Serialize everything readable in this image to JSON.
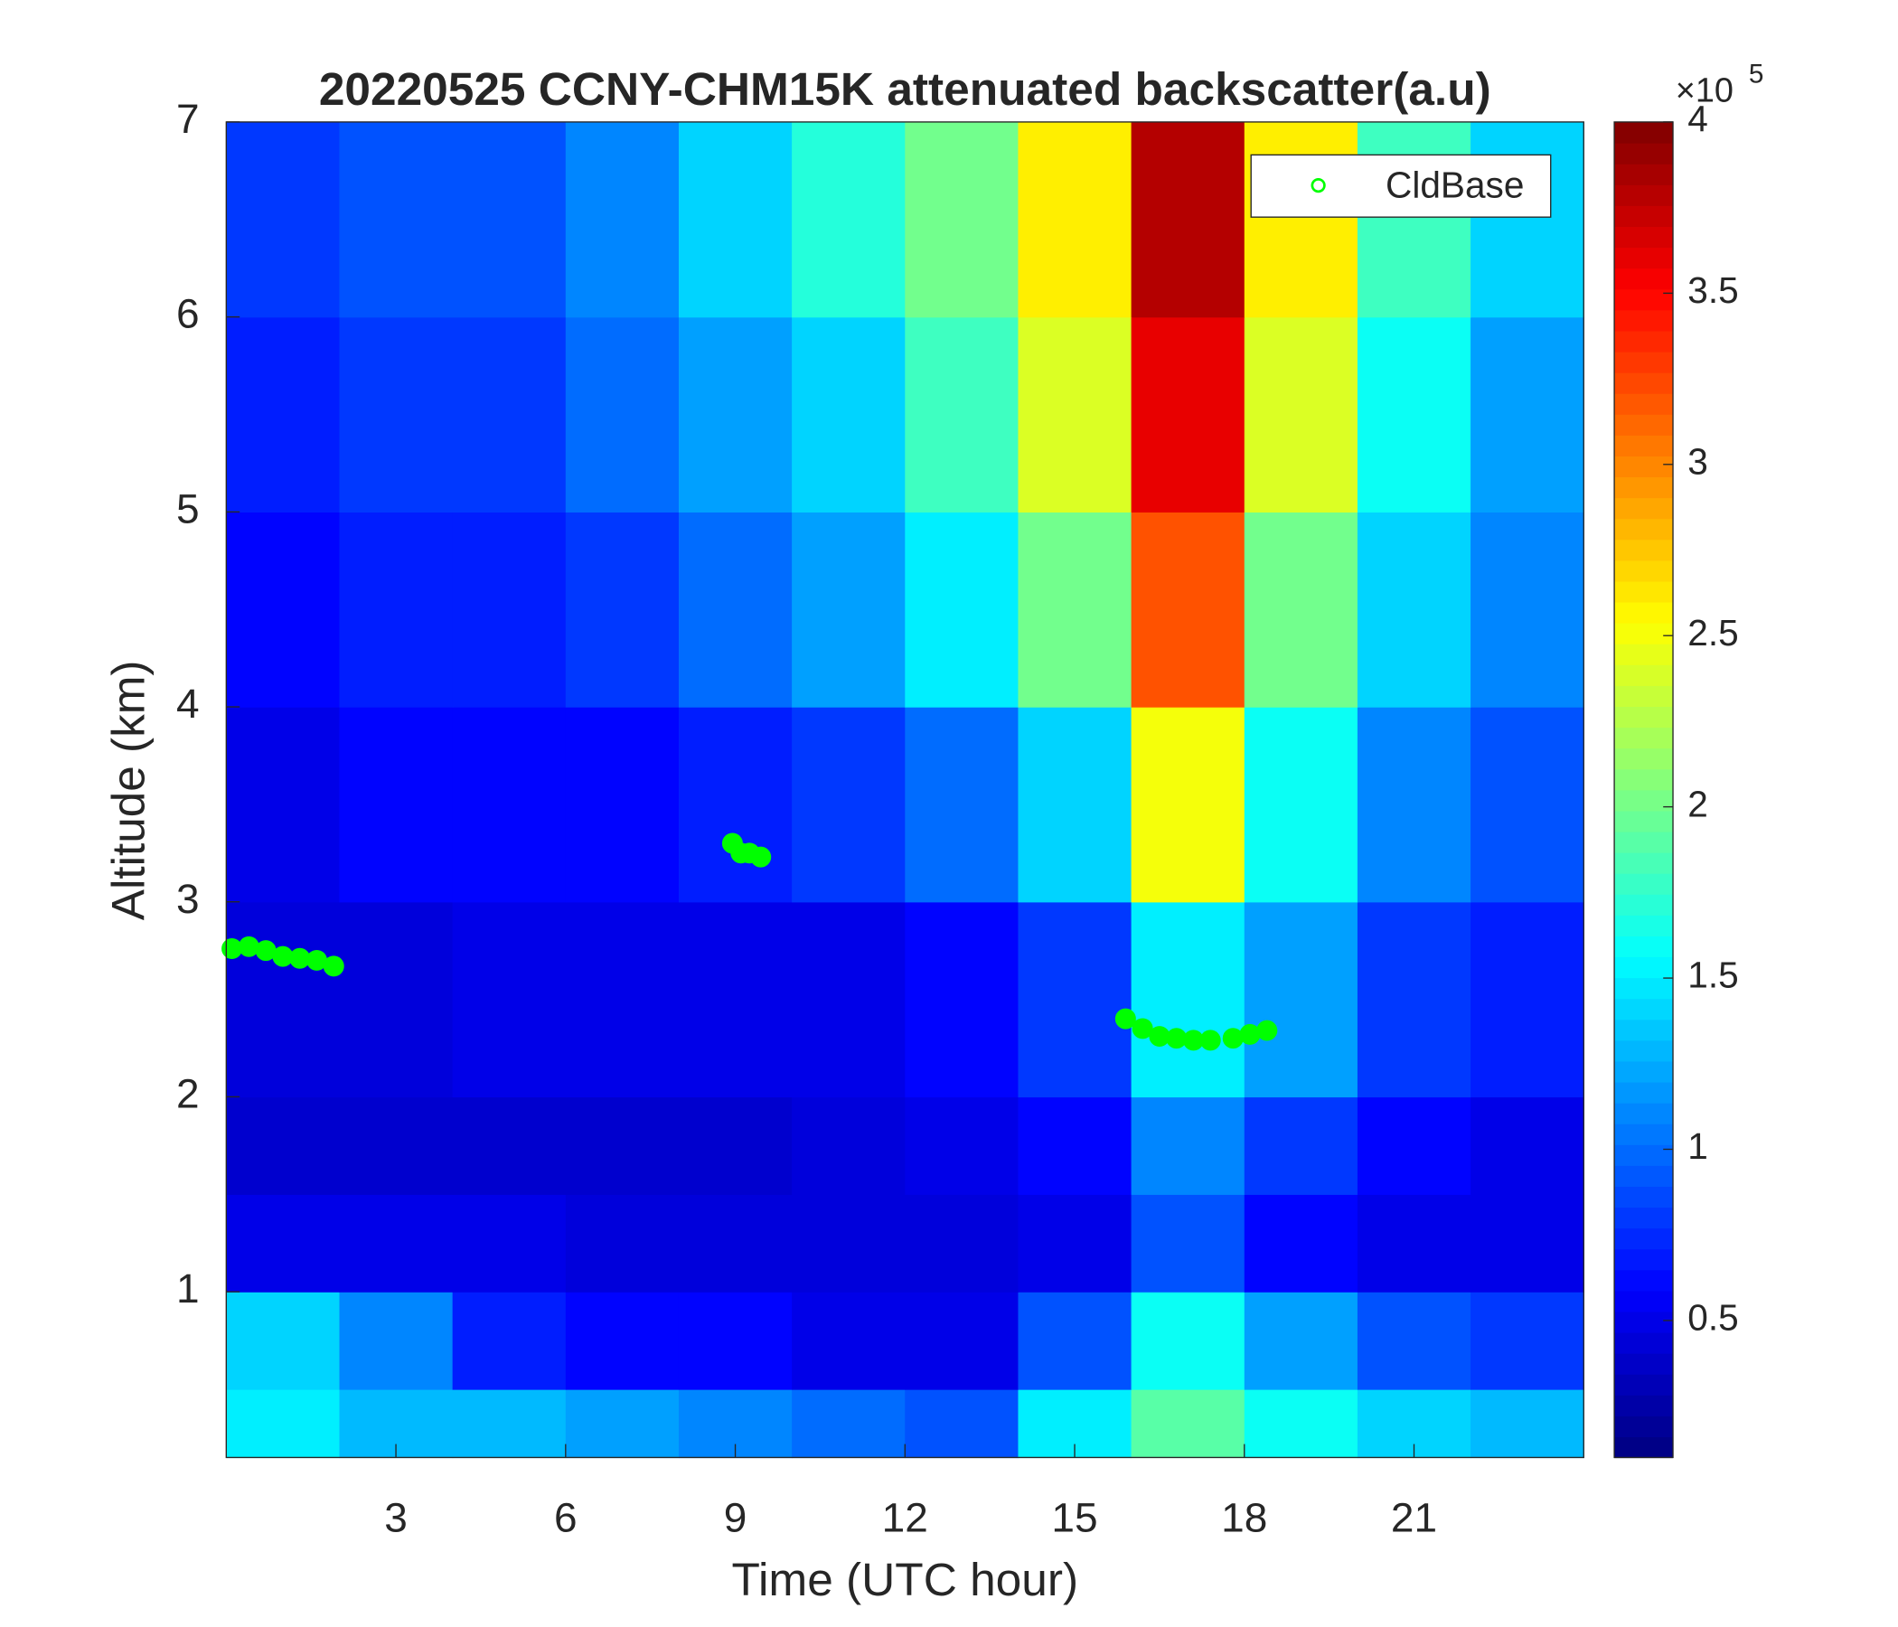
{
  "chart_data": {
    "type": "heatmap",
    "title": "20220525 CCNY-CHM15K attenuated backscatter(a.u)",
    "x_label": "Time (UTC hour)",
    "y_label": "Altitude (km)",
    "xlim": [
      0,
      24
    ],
    "ylim": [
      0.15,
      7
    ],
    "xticks": [
      3,
      6,
      9,
      12,
      15,
      18,
      21
    ],
    "yticks": [
      1,
      2,
      3,
      4,
      5,
      6,
      7
    ],
    "heatmap": {
      "xbins": [
        0,
        2,
        4,
        6,
        8,
        10,
        12,
        14,
        16,
        18,
        20,
        22,
        24
      ],
      "ybins": [
        0.15,
        0.5,
        1,
        1.5,
        2,
        3,
        4,
        5,
        6,
        7
      ],
      "z": [
        [
          1.5,
          1.3,
          1.3,
          1.2,
          1.1,
          1.0,
          0.9,
          1.5,
          1.9,
          1.6,
          1.4,
          1.3
        ],
        [
          1.4,
          1.1,
          0.7,
          0.6,
          0.6,
          0.5,
          0.5,
          0.9,
          1.6,
          1.2,
          0.9,
          0.8
        ],
        [
          0.5,
          0.5,
          0.5,
          0.45,
          0.45,
          0.45,
          0.45,
          0.5,
          0.9,
          0.6,
          0.5,
          0.5
        ],
        [
          0.4,
          0.4,
          0.4,
          0.4,
          0.4,
          0.45,
          0.5,
          0.6,
          1.1,
          0.8,
          0.6,
          0.5
        ],
        [
          0.45,
          0.45,
          0.5,
          0.5,
          0.5,
          0.5,
          0.6,
          0.8,
          1.5,
          1.2,
          0.8,
          0.7
        ],
        [
          0.5,
          0.6,
          0.6,
          0.6,
          0.7,
          0.8,
          1.0,
          1.4,
          2.5,
          1.6,
          1.1,
          0.9
        ],
        [
          0.6,
          0.7,
          0.7,
          0.8,
          1.0,
          1.2,
          1.5,
          2.0,
          3.2,
          2.0,
          1.4,
          1.1
        ],
        [
          0.7,
          0.8,
          0.8,
          1.0,
          1.2,
          1.4,
          1.8,
          2.4,
          3.6,
          2.4,
          1.6,
          1.2
        ],
        [
          0.8,
          0.9,
          0.9,
          1.1,
          1.4,
          1.7,
          2.0,
          2.6,
          3.8,
          2.6,
          1.8,
          1.4
        ]
      ],
      "clim": [
        0.1,
        4
      ]
    },
    "colorbar_ticks": [
      0.5,
      1,
      1.5,
      2,
      2.5,
      3,
      3.5,
      4
    ],
    "colorbar_multiplier": {
      "base": "×10",
      "exponent": 5
    },
    "colormap": "jet",
    "legend": "upper right",
    "series": [
      {
        "name": "CldBase",
        "color": "#00ff00",
        "x": [
          0.1,
          0.4,
          0.7,
          1.0,
          1.3,
          1.6,
          1.9,
          8.95,
          9.1,
          9.25,
          9.45,
          15.9,
          16.2,
          16.5,
          16.8,
          17.1,
          17.4,
          17.8,
          18.1,
          18.4
        ],
        "y": [
          2.76,
          2.77,
          2.75,
          2.72,
          2.71,
          2.7,
          2.67,
          3.3,
          3.25,
          3.25,
          3.23,
          2.4,
          2.35,
          2.31,
          2.3,
          2.29,
          2.29,
          2.3,
          2.32,
          2.34
        ]
      }
    ]
  }
}
